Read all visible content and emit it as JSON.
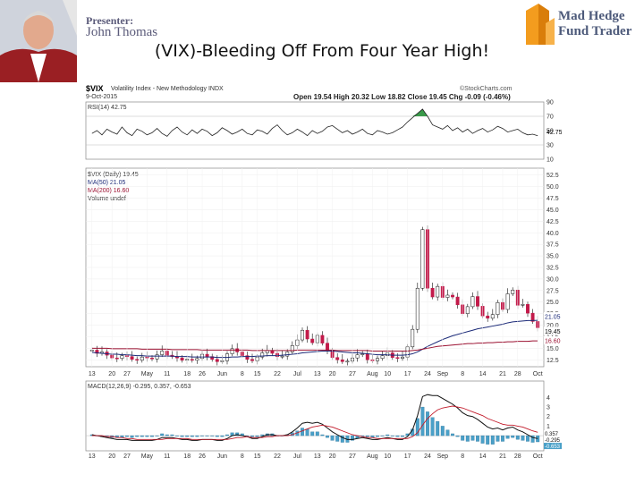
{
  "presenter": {
    "label": "Presenter:",
    "name": "John Thomas"
  },
  "title": "(VIX)-Bleeding Off From Four Year High!",
  "brand": {
    "line1": "Mad Hedge",
    "line2": "Fund Trader",
    "colors": {
      "orange": "#f39c1e",
      "navy": "#4d5a7a"
    }
  },
  "chart_header": {
    "symbol": "$VIX",
    "description": "Volatility Index - New Methodology  INDX",
    "source": "©StockCharts.com",
    "date": "9-Oct-2015",
    "ohlc": "Open 19.54  High 20.32  Low 18.82  Close 19.45  Chg -0.09 (-0.46%)"
  },
  "chart_data": [
    {
      "type": "line",
      "panel": "rsi",
      "legend": "RSI(14) 42.75",
      "ylim": [
        10,
        90
      ],
      "yticks": [
        10,
        30,
        50,
        70,
        90
      ],
      "last_value_label": "42.75",
      "values": [
        46,
        50,
        44,
        52,
        48,
        45,
        55,
        47,
        43,
        52,
        49,
        44,
        47,
        53,
        46,
        42,
        50,
        55,
        48,
        44,
        51,
        46,
        52,
        49,
        43,
        47,
        54,
        50,
        45,
        48,
        52,
        46,
        44,
        51,
        49,
        45,
        53,
        58,
        50,
        44,
        47,
        52,
        48,
        43,
        50,
        46,
        49,
        55,
        57,
        52,
        47,
        50,
        45,
        48,
        52,
        46,
        44,
        50,
        48,
        45,
        47,
        51,
        55,
        62,
        68,
        74,
        80,
        70,
        58,
        55,
        52,
        57,
        50,
        54,
        48,
        52,
        46,
        50,
        53,
        48,
        51,
        56,
        53,
        48,
        50,
        52,
        47,
        44,
        45,
        42.75
      ]
    },
    {
      "type": "candlestick",
      "panel": "price",
      "legend": [
        "$VIX (Daily) 19.45",
        "MA(50) 21.05",
        "MA(200) 16.60",
        "Volume undef"
      ],
      "ylim": [
        11,
        54
      ],
      "yticks": [
        12.5,
        15.0,
        17.5,
        20.0,
        22.5,
        25.0,
        27.5,
        30.0,
        32.5,
        35.0,
        37.5,
        40.0,
        42.5,
        45.0,
        47.5,
        50.0,
        52.5
      ],
      "ma_labels": {
        "ma50": "21.05",
        "ma200": "16.60",
        "close": "19.45"
      },
      "x_ticks": [
        "13",
        "20",
        "27",
        "May",
        "11",
        "18",
        "26",
        "Jun",
        "8",
        "15",
        "22",
        "Jul",
        "13",
        "20",
        "27",
        "Aug",
        "10",
        "17",
        "24",
        "Sep",
        "8",
        "14",
        "21",
        "28",
        "Oct"
      ],
      "close": [
        14.6,
        13.9,
        14.2,
        13.5,
        12.9,
        12.8,
        13.4,
        13.2,
        12.6,
        12.4,
        13.1,
        12.9,
        12.7,
        13.6,
        14.4,
        13.5,
        13.2,
        12.9,
        12.4,
        12.6,
        12.4,
        12.8,
        13.7,
        13.2,
        12.6,
        12.1,
        12.3,
        13.8,
        14.9,
        14.2,
        13.4,
        12.6,
        12.3,
        13.1,
        14.0,
        14.5,
        13.9,
        13.2,
        13.3,
        14.2,
        15.6,
        16.8,
        18.9,
        17.0,
        16.2,
        17.8,
        16.1,
        14.5,
        13.0,
        12.5,
        12.1,
        12.2,
        12.9,
        13.6,
        13.8,
        12.5,
        12.3,
        12.8,
        13.4,
        14.0,
        13.0,
        12.8,
        13.1,
        15.3,
        19.1,
        28.0,
        40.7,
        28.0,
        26.1,
        28.4,
        26.0,
        26.5,
        26.1,
        24.4,
        22.5,
        24.0,
        26.2,
        24.1,
        22.0,
        21.5,
        22.3,
        24.9,
        23.4,
        26.8,
        27.6,
        24.3,
        24.5,
        22.6,
        20.8,
        19.45
      ],
      "ma50": [
        14.1,
        14.0,
        13.9,
        13.8,
        13.7,
        13.7,
        13.6,
        13.6,
        13.5,
        13.4,
        13.4,
        13.3,
        13.3,
        13.3,
        13.3,
        13.3,
        13.3,
        13.2,
        13.2,
        13.2,
        13.1,
        13.1,
        13.1,
        13.1,
        13.1,
        13.0,
        13.0,
        13.0,
        13.1,
        13.1,
        13.2,
        13.2,
        13.2,
        13.3,
        13.3,
        13.4,
        13.4,
        13.4,
        13.5,
        13.6,
        13.7,
        13.8,
        14.0,
        14.1,
        14.2,
        14.3,
        14.4,
        14.4,
        14.4,
        14.3,
        14.2,
        14.1,
        14.0,
        14.0,
        13.9,
        13.8,
        13.7,
        13.6,
        13.6,
        13.6,
        13.5,
        13.5,
        13.5,
        13.6,
        13.8,
        14.2,
        14.8,
        15.4,
        15.9,
        16.4,
        16.9,
        17.3,
        17.7,
        18.0,
        18.3,
        18.6,
        18.9,
        19.2,
        19.4,
        19.6,
        19.8,
        20.0,
        20.2,
        20.5,
        20.7,
        20.8,
        20.9,
        21.0,
        21.0,
        21.05
      ],
      "ma200": [
        15.0,
        15.0,
        15.0,
        15.0,
        14.9,
        14.9,
        14.9,
        14.9,
        14.9,
        14.9,
        14.8,
        14.8,
        14.8,
        14.8,
        14.8,
        14.8,
        14.7,
        14.7,
        14.7,
        14.7,
        14.7,
        14.7,
        14.6,
        14.6,
        14.6,
        14.6,
        14.6,
        14.6,
        14.6,
        14.6,
        14.6,
        14.6,
        14.5,
        14.5,
        14.5,
        14.5,
        14.5,
        14.5,
        14.5,
        14.5,
        14.5,
        14.6,
        14.6,
        14.6,
        14.6,
        14.6,
        14.6,
        14.6,
        14.6,
        14.5,
        14.5,
        14.5,
        14.5,
        14.5,
        14.5,
        14.5,
        14.4,
        14.4,
        14.4,
        14.4,
        14.4,
        14.4,
        14.4,
        14.4,
        14.5,
        14.6,
        14.8,
        15.0,
        15.2,
        15.4,
        15.5,
        15.6,
        15.7,
        15.8,
        15.9,
        16.0,
        16.0,
        16.1,
        16.1,
        16.2,
        16.2,
        16.3,
        16.3,
        16.4,
        16.4,
        16.5,
        16.5,
        16.5,
        16.6,
        16.6
      ]
    },
    {
      "type": "line",
      "panel": "macd",
      "legend": [
        "MACD(12,26,9) -0.295, 0.357, -0.653"
      ],
      "ylim": [
        -1.4,
        4.6
      ],
      "yticks": [
        -1,
        0,
        1,
        2,
        3,
        4
      ],
      "value_labels": [
        "0.357",
        "-0.295",
        "-0.653"
      ],
      "macd": [
        0.1,
        0.0,
        -0.1,
        -0.2,
        -0.3,
        -0.4,
        -0.4,
        -0.4,
        -0.5,
        -0.5,
        -0.5,
        -0.5,
        -0.5,
        -0.4,
        -0.2,
        -0.2,
        -0.2,
        -0.3,
        -0.4,
        -0.4,
        -0.5,
        -0.5,
        -0.4,
        -0.4,
        -0.4,
        -0.5,
        -0.5,
        -0.3,
        0.0,
        0.1,
        0.0,
        -0.1,
        -0.3,
        -0.3,
        -0.1,
        0.1,
        0.1,
        0.0,
        0.0,
        0.1,
        0.4,
        0.8,
        1.3,
        1.4,
        1.3,
        1.4,
        1.2,
        0.8,
        0.4,
        0.1,
        -0.2,
        -0.4,
        -0.4,
        -0.3,
        -0.2,
        -0.3,
        -0.4,
        -0.4,
        -0.3,
        -0.2,
        -0.3,
        -0.4,
        -0.4,
        -0.1,
        0.6,
        2.1,
        4.1,
        4.3,
        4.2,
        4.2,
        3.9,
        3.6,
        3.3,
        2.9,
        2.4,
        2.1,
        2.0,
        1.7,
        1.3,
        0.9,
        0.7,
        0.8,
        0.6,
        0.8,
        0.9,
        0.6,
        0.4,
        0.1,
        -0.2,
        -0.295
      ],
      "signal": [
        0.0,
        0.0,
        0.0,
        -0.1,
        -0.1,
        -0.2,
        -0.2,
        -0.3,
        -0.3,
        -0.4,
        -0.4,
        -0.4,
        -0.4,
        -0.4,
        -0.4,
        -0.3,
        -0.3,
        -0.3,
        -0.3,
        -0.3,
        -0.4,
        -0.4,
        -0.4,
        -0.4,
        -0.4,
        -0.4,
        -0.4,
        -0.4,
        -0.3,
        -0.2,
        -0.2,
        -0.1,
        -0.2,
        -0.2,
        -0.2,
        -0.1,
        -0.1,
        0.0,
        0.0,
        0.0,
        0.1,
        0.3,
        0.5,
        0.7,
        0.9,
        1.0,
        1.1,
        1.0,
        0.9,
        0.7,
        0.5,
        0.3,
        0.1,
        0.0,
        -0.1,
        -0.2,
        -0.2,
        -0.3,
        -0.3,
        -0.3,
        -0.3,
        -0.3,
        -0.3,
        -0.3,
        -0.1,
        0.3,
        1.1,
        1.8,
        2.3,
        2.7,
        2.9,
        3.0,
        3.1,
        3.0,
        2.9,
        2.7,
        2.5,
        2.3,
        2.1,
        1.8,
        1.6,
        1.4,
        1.2,
        1.1,
        1.1,
        1.0,
        0.9,
        0.7,
        0.5,
        0.357
      ],
      "x_ticks": [
        "13",
        "20",
        "27",
        "May",
        "11",
        "18",
        "26",
        "Jun",
        "8",
        "15",
        "22",
        "Jul",
        "13",
        "20",
        "27",
        "Aug",
        "10",
        "17",
        "24",
        "Sep",
        "8",
        "14",
        "21",
        "28",
        "Oct"
      ]
    }
  ]
}
